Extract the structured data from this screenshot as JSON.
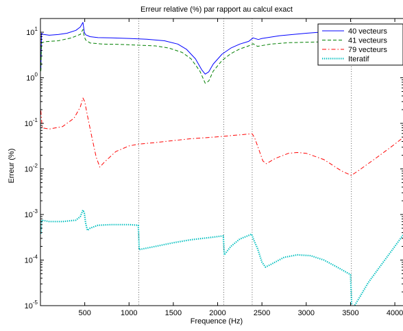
{
  "chart_data": {
    "type": "line",
    "title": "Erreur relative (%) par rapport au calcul exact",
    "xlabel": "Frequence (Hz)",
    "ylabel": "Erreur (%)",
    "xlim": [
      0,
      4100
    ],
    "ylim": [
      1e-05,
      20
    ],
    "yscale": "log",
    "xticks": [
      500,
      1000,
      1500,
      2000,
      2500,
      3000,
      3500,
      4000
    ],
    "xtick_labels": [
      "500",
      "1000",
      "1500",
      "2000",
      "2500",
      "3000",
      "3500",
      "4000"
    ],
    "yticks": [
      {
        "value": 10,
        "base": "10",
        "exp": "1"
      },
      {
        "value": 1,
        "base": "10",
        "exp": "0"
      },
      {
        "value": 0.1,
        "base": "10",
        "exp": "-1"
      },
      {
        "value": 0.01,
        "base": "10",
        "exp": "-2"
      },
      {
        "value": 0.001,
        "base": "10",
        "exp": "-3"
      },
      {
        "value": 0.0001,
        "base": "10",
        "exp": "-4"
      },
      {
        "value": 1e-05,
        "base": "10",
        "exp": "-5"
      }
    ],
    "vlines_x": [
      1110,
      2070,
      2390,
      3510
    ],
    "legend_position": "top-right",
    "grid": false,
    "series": [
      {
        "name": "40 vecteurs",
        "color": "#0000ff",
        "style": "solid",
        "points": [
          [
            5,
            1.5
          ],
          [
            12,
            9.5
          ],
          [
            30,
            9.0
          ],
          [
            100,
            8.6
          ],
          [
            200,
            8.9
          ],
          [
            300,
            9.5
          ],
          [
            400,
            11.0
          ],
          [
            450,
            13.0
          ],
          [
            480,
            16.5
          ],
          [
            495,
            10.0
          ],
          [
            510,
            8.8
          ],
          [
            560,
            8.0
          ],
          [
            650,
            7.6
          ],
          [
            800,
            7.5
          ],
          [
            1000,
            7.3
          ],
          [
            1200,
            7.0
          ],
          [
            1400,
            6.5
          ],
          [
            1550,
            5.5
          ],
          [
            1650,
            4.2
          ],
          [
            1750,
            2.6
          ],
          [
            1820,
            1.5
          ],
          [
            1860,
            1.2
          ],
          [
            1900,
            1.35
          ],
          [
            1950,
            2.0
          ],
          [
            2050,
            3.3
          ],
          [
            2150,
            4.5
          ],
          [
            2250,
            5.5
          ],
          [
            2350,
            6.3
          ],
          [
            2400,
            7.5
          ],
          [
            2460,
            6.9
          ],
          [
            2500,
            7.3
          ],
          [
            2700,
            8.4
          ],
          [
            3000,
            9.5
          ],
          [
            3300,
            10.5
          ],
          [
            3500,
            11.2
          ],
          [
            3700,
            12.0
          ],
          [
            3900,
            13.0
          ],
          [
            4100,
            14.0
          ]
        ]
      },
      {
        "name": "41 vecteurs",
        "color": "#007f00",
        "style": "dashed",
        "points": [
          [
            5,
            1.4
          ],
          [
            12,
            5.8
          ],
          [
            50,
            6.2
          ],
          [
            200,
            6.5
          ],
          [
            350,
            7.5
          ],
          [
            450,
            9.0
          ],
          [
            480,
            11.5
          ],
          [
            495,
            8.0
          ],
          [
            510,
            6.8
          ],
          [
            560,
            5.8
          ],
          [
            700,
            5.5
          ],
          [
            900,
            5.4
          ],
          [
            1100,
            5.2
          ],
          [
            1300,
            5.0
          ],
          [
            1450,
            4.5
          ],
          [
            1600,
            3.6
          ],
          [
            1700,
            2.6
          ],
          [
            1800,
            1.4
          ],
          [
            1860,
            0.76
          ],
          [
            1900,
            0.85
          ],
          [
            1950,
            1.4
          ],
          [
            2050,
            2.4
          ],
          [
            2150,
            3.4
          ],
          [
            2250,
            4.3
          ],
          [
            2350,
            5.0
          ],
          [
            2400,
            5.6
          ],
          [
            2450,
            4.9
          ],
          [
            2600,
            5.5
          ],
          [
            2800,
            5.9
          ],
          [
            3100,
            6.1
          ],
          [
            3500,
            6.2
          ],
          [
            3800,
            6.3
          ],
          [
            4100,
            6.3
          ]
        ]
      },
      {
        "name": "79 vecteurs",
        "color": "#ff0000",
        "style": "dashdot",
        "points": [
          [
            5,
            0.19
          ],
          [
            20,
            0.08
          ],
          [
            100,
            0.075
          ],
          [
            250,
            0.085
          ],
          [
            380,
            0.13
          ],
          [
            450,
            0.23
          ],
          [
            480,
            0.36
          ],
          [
            500,
            0.3
          ],
          [
            530,
            0.15
          ],
          [
            580,
            0.05
          ],
          [
            630,
            0.018
          ],
          [
            670,
            0.011
          ],
          [
            720,
            0.014
          ],
          [
            850,
            0.024
          ],
          [
            1000,
            0.032
          ],
          [
            1110,
            0.035
          ],
          [
            1300,
            0.038
          ],
          [
            1500,
            0.042
          ],
          [
            1700,
            0.046
          ],
          [
            1900,
            0.049
          ],
          [
            2070,
            0.052
          ],
          [
            2200,
            0.055
          ],
          [
            2390,
            0.059
          ],
          [
            2420,
            0.047
          ],
          [
            2470,
            0.025
          ],
          [
            2510,
            0.015
          ],
          [
            2550,
            0.013
          ],
          [
            2650,
            0.017
          ],
          [
            2800,
            0.022
          ],
          [
            2900,
            0.023
          ],
          [
            3000,
            0.022
          ],
          [
            3200,
            0.016
          ],
          [
            3400,
            0.009
          ],
          [
            3510,
            0.0072
          ],
          [
            3600,
            0.0095
          ],
          [
            3800,
            0.018
          ],
          [
            4000,
            0.035
          ],
          [
            4100,
            0.05
          ]
        ]
      },
      {
        "name": "Iteratif",
        "color": "#00bfbf",
        "style": "dotted",
        "points": [
          [
            5,
            0.00038
          ],
          [
            12,
            0.00075
          ],
          [
            100,
            0.0007
          ],
          [
            250,
            0.0007
          ],
          [
            400,
            0.00075
          ],
          [
            450,
            0.0009
          ],
          [
            480,
            0.00125
          ],
          [
            495,
            0.0011
          ],
          [
            510,
            0.00065
          ],
          [
            530,
            0.00045
          ],
          [
            560,
            0.0005
          ],
          [
            650,
            0.00058
          ],
          [
            800,
            0.0006
          ],
          [
            1000,
            0.0006
          ],
          [
            1105,
            0.00058
          ],
          [
            1115,
            0.00017
          ],
          [
            1300,
            0.0002
          ],
          [
            1500,
            0.00024
          ],
          [
            1700,
            0.00028
          ],
          [
            1900,
            0.00031
          ],
          [
            2065,
            0.00034
          ],
          [
            2075,
            0.00013
          ],
          [
            2150,
            0.0002
          ],
          [
            2250,
            0.00029
          ],
          [
            2385,
            0.00037
          ],
          [
            2400,
            0.0003
          ],
          [
            2450,
            0.00018
          ],
          [
            2500,
            9e-05
          ],
          [
            2540,
            7e-05
          ],
          [
            2600,
            8e-05
          ],
          [
            2750,
            0.000115
          ],
          [
            2900,
            0.00013
          ],
          [
            3050,
            0.000125
          ],
          [
            3200,
            0.0001
          ],
          [
            3350,
            7e-05
          ],
          [
            3500,
            4.8e-05
          ],
          [
            3515,
            8e-06
          ],
          [
            3600,
            1.5e-05
          ],
          [
            3700,
            3.2e-05
          ],
          [
            3850,
            8e-05
          ],
          [
            4000,
            0.0002
          ],
          [
            4100,
            0.00037
          ]
        ]
      }
    ]
  }
}
